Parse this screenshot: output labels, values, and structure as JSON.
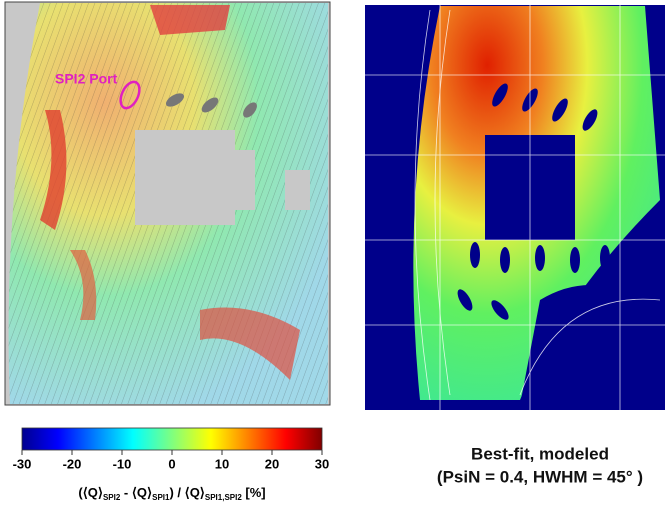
{
  "left_panel": {
    "annotation": "SPI2 Port"
  },
  "colorbar": {
    "lim": [
      -30,
      30
    ],
    "ticks": [
      -30,
      -20,
      -10,
      0,
      10,
      20,
      30
    ],
    "label": [
      "(⟨Q⟩",
      "SPI2",
      " - ⟨Q⟩",
      "SPI1",
      ") / ⟨Q⟩",
      "SPI1,SPI2",
      " [%]"
    ]
  },
  "right_panel": {
    "caption": [
      "Best-fit, modeled",
      "(PsiN = 0.4, HWHM = 45°  )"
    ]
  }
}
